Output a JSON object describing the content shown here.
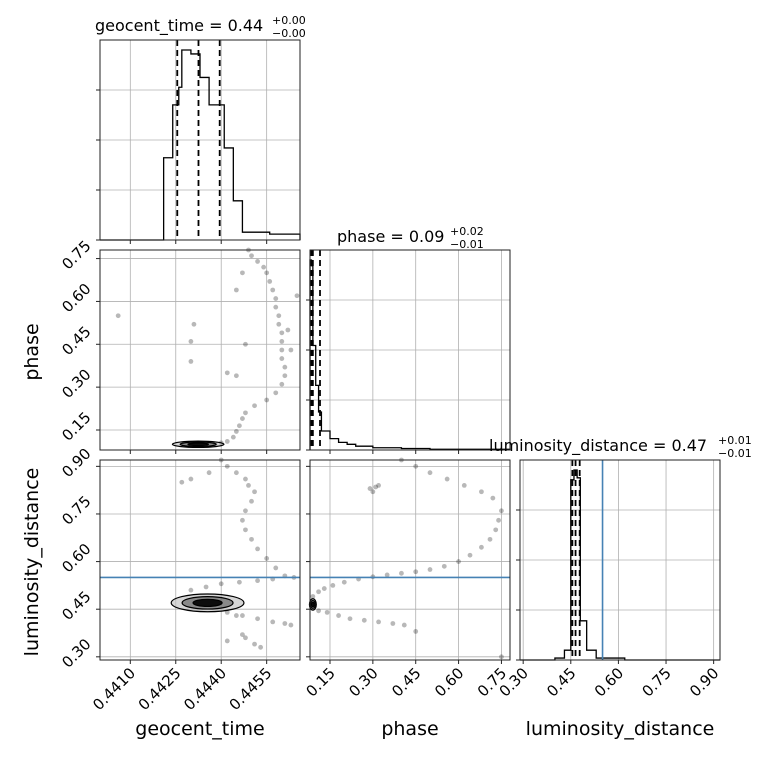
{
  "chart_data": {
    "type": "corner",
    "parameters": [
      "geocent_time",
      "phase",
      "luminosity_distance"
    ],
    "axis_labels": {
      "geocent_time": "geocent_time",
      "phase": "phase",
      "luminosity_distance": "luminosity_distance"
    },
    "ranges": {
      "geocent_time": [
        0.44,
        0.4466
      ],
      "phase": [
        0.08,
        0.78
      ],
      "luminosity_distance": [
        0.29,
        0.92
      ]
    },
    "ticks": {
      "geocent_time": [
        "0.4410",
        "0.4425",
        "0.4440",
        "0.4455"
      ],
      "phase": [
        "0.15",
        "0.30",
        "0.45",
        "0.60",
        "0.75"
      ],
      "luminosity_distance": [
        "0.30",
        "0.45",
        "0.60",
        "0.75",
        "0.90"
      ]
    },
    "truth": {
      "luminosity_distance": 0.55,
      "color": "#4682b4"
    },
    "titles": [
      {
        "param": "geocent_time",
        "name": "geocent_time",
        "median": "0.44",
        "plus": "+0.00",
        "minus": "−0.00"
      },
      {
        "param": "phase",
        "name": "phase",
        "median": "0.09",
        "plus": "+0.02",
        "minus": "−0.01"
      },
      {
        "param": "luminosity_distance",
        "name": "luminosity_distance",
        "median": "0.47",
        "plus": "+0.01",
        "minus": "−0.01"
      }
    ],
    "quantile_lines": {
      "geocent_time": [
        0.44255,
        0.44325,
        0.44395
      ],
      "phase": [
        0.085,
        0.09,
        0.115
      ],
      "luminosity_distance": [
        0.455,
        0.465,
        0.478
      ]
    },
    "histograms": {
      "geocent_time": {
        "edges": [
          0.44,
          0.4421,
          0.4424,
          0.4426,
          0.4427,
          0.443,
          0.4433,
          0.4436,
          0.4441,
          0.4444,
          0.4447,
          0.4456,
          0.4466
        ],
        "counts": [
          0,
          0.42,
          0.69,
          0.78,
          0.97,
          0.95,
          0.83,
          0.69,
          0.47,
          0.2,
          0.04,
          0.03
        ]
      },
      "phase": {
        "edges": [
          0.08,
          0.085,
          0.09,
          0.1,
          0.11,
          0.12,
          0.15,
          0.18,
          0.21,
          0.24,
          0.3,
          0.4,
          0.5,
          0.78
        ],
        "counts": [
          1.0,
          0.97,
          0.55,
          0.34,
          0.2,
          0.1,
          0.06,
          0.04,
          0.03,
          0.02,
          0.012,
          0.008,
          0.004
        ]
      },
      "luminosity_distance": {
        "edges": [
          0.29,
          0.4,
          0.43,
          0.45,
          0.46,
          0.47,
          0.48,
          0.5,
          0.53,
          0.62,
          0.92
        ],
        "counts": [
          0,
          0.01,
          0.05,
          0.92,
          0.97,
          0.93,
          0.2,
          0.05,
          0.01,
          0
        ]
      }
    },
    "scatter": {
      "geocent_time_vs_phase": [
        [
          0.4406,
          0.55
        ],
        [
          0.4449,
          0.78
        ],
        [
          0.445,
          0.76
        ],
        [
          0.4452,
          0.74
        ],
        [
          0.4454,
          0.72
        ],
        [
          0.4455,
          0.7
        ],
        [
          0.4456,
          0.67
        ],
        [
          0.4457,
          0.64
        ],
        [
          0.4458,
          0.61
        ],
        [
          0.4458,
          0.58
        ],
        [
          0.4459,
          0.55
        ],
        [
          0.4459,
          0.52
        ],
        [
          0.446,
          0.49
        ],
        [
          0.446,
          0.46
        ],
        [
          0.446,
          0.43
        ],
        [
          0.446,
          0.4
        ],
        [
          0.4461,
          0.37
        ],
        [
          0.4461,
          0.34
        ],
        [
          0.446,
          0.31
        ],
        [
          0.4458,
          0.28
        ],
        [
          0.4455,
          0.255
        ],
        [
          0.4451,
          0.235
        ],
        [
          0.4448,
          0.21
        ],
        [
          0.4447,
          0.19
        ],
        [
          0.4446,
          0.165
        ],
        [
          0.4445,
          0.145
        ],
        [
          0.4444,
          0.125
        ],
        [
          0.4442,
          0.11
        ],
        [
          0.444,
          0.105
        ],
        [
          0.4438,
          0.1
        ],
        [
          0.4462,
          0.5
        ],
        [
          0.4463,
          0.43
        ],
        [
          0.4465,
          0.62
        ],
        [
          0.4442,
          0.35
        ],
        [
          0.4445,
          0.34
        ],
        [
          0.443,
          0.39
        ],
        [
          0.443,
          0.46
        ],
        [
          0.4431,
          0.52
        ],
        [
          0.4445,
          0.64
        ],
        [
          0.4448,
          0.45
        ],
        [
          0.4447,
          0.7
        ]
      ],
      "phase_vs_luminosity_distance": [
        [
          0.09,
          0.49
        ],
        [
          0.11,
          0.505
        ],
        [
          0.13,
          0.515
        ],
        [
          0.16,
          0.525
        ],
        [
          0.2,
          0.535
        ],
        [
          0.25,
          0.545
        ],
        [
          0.3,
          0.552
        ],
        [
          0.35,
          0.558
        ],
        [
          0.4,
          0.563
        ],
        [
          0.45,
          0.568
        ],
        [
          0.5,
          0.575
        ],
        [
          0.55,
          0.585
        ],
        [
          0.6,
          0.6
        ],
        [
          0.64,
          0.62
        ],
        [
          0.68,
          0.645
        ],
        [
          0.71,
          0.67
        ],
        [
          0.73,
          0.7
        ],
        [
          0.74,
          0.73
        ],
        [
          0.75,
          0.76
        ],
        [
          0.72,
          0.8
        ],
        [
          0.68,
          0.82
        ],
        [
          0.62,
          0.84
        ],
        [
          0.56,
          0.86
        ],
        [
          0.5,
          0.88
        ],
        [
          0.45,
          0.9
        ],
        [
          0.4,
          0.92
        ],
        [
          0.11,
          0.445
        ],
        [
          0.14,
          0.44
        ],
        [
          0.18,
          0.43
        ],
        [
          0.22,
          0.42
        ],
        [
          0.27,
          0.415
        ],
        [
          0.32,
          0.41
        ],
        [
          0.37,
          0.405
        ],
        [
          0.41,
          0.4
        ],
        [
          0.45,
          0.38
        ],
        [
          0.29,
          0.83
        ],
        [
          0.3,
          0.82
        ],
        [
          0.31,
          0.835
        ],
        [
          0.32,
          0.84
        ],
        [
          0.75,
          0.3
        ]
      ],
      "geocent_time_vs_luminosity_distance": [
        [
          0.444,
          0.92
        ],
        [
          0.4442,
          0.9
        ],
        [
          0.4445,
          0.88
        ],
        [
          0.4448,
          0.86
        ],
        [
          0.4449,
          0.84
        ],
        [
          0.4451,
          0.82
        ],
        [
          0.445,
          0.79
        ],
        [
          0.4448,
          0.76
        ],
        [
          0.4447,
          0.73
        ],
        [
          0.4448,
          0.7
        ],
        [
          0.445,
          0.67
        ],
        [
          0.4452,
          0.64
        ],
        [
          0.4455,
          0.61
        ],
        [
          0.4458,
          0.58
        ],
        [
          0.4461,
          0.555
        ],
        [
          0.4464,
          0.55
        ],
        [
          0.4457,
          0.545
        ],
        [
          0.4452,
          0.54
        ],
        [
          0.4446,
          0.535
        ],
        [
          0.444,
          0.53
        ],
        [
          0.4435,
          0.52
        ],
        [
          0.443,
          0.51
        ],
        [
          0.4442,
          0.44
        ],
        [
          0.4447,
          0.43
        ],
        [
          0.4452,
          0.42
        ],
        [
          0.4457,
          0.41
        ],
        [
          0.4461,
          0.405
        ],
        [
          0.4463,
          0.4
        ],
        [
          0.4445,
          0.43
        ],
        [
          0.4448,
          0.36
        ],
        [
          0.4451,
          0.34
        ],
        [
          0.4453,
          0.33
        ],
        [
          0.4447,
          0.37
        ],
        [
          0.4427,
          0.85
        ],
        [
          0.443,
          0.86
        ],
        [
          0.4436,
          0.88
        ],
        [
          0.4442,
          0.35
        ]
      ]
    },
    "contours": {
      "geocent_time_vs_phase": {
        "center": [
          0.44324,
          0.1
        ],
        "radii": [
          0.00085,
          0.011
        ]
      },
      "geocent_time_vs_luminosity_distance": {
        "center": [
          0.44355,
          0.47
        ],
        "radii": [
          0.0012,
          0.028
        ]
      },
      "phase_vs_luminosity_distance": {
        "center": [
          0.09,
          0.465
        ],
        "radii": [
          0.012,
          0.018
        ]
      }
    },
    "grid": true,
    "legend": "none"
  }
}
